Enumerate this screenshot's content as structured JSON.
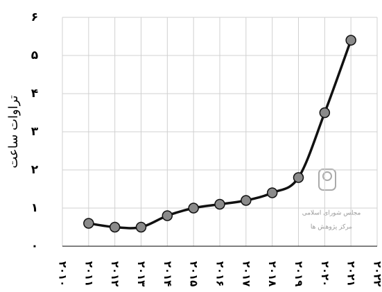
{
  "chart_data": {
    "type": "line",
    "ylabel": "تراوات ساعت",
    "watermark": [
      "مجلس شورای اسلامی",
      "مرکز پژوهش ها"
    ],
    "categories": [
      "۲۰۱۰",
      "۲۰۱۱",
      "۲۰۱۲",
      "۲۰۱۳",
      "۲۰۱۴",
      "۲۰۱۵",
      "۲۰۱۶",
      "۲۰۱۷",
      "۲۰۱۸",
      "۲۰۱۹",
      "۲۰۲۰",
      "۲۰۲۱",
      "۲۰۲۲"
    ],
    "values": [
      null,
      0.6,
      0.5,
      0.5,
      0.8,
      1.0,
      1.1,
      1.2,
      1.4,
      1.8,
      3.5,
      5.4,
      null
    ],
    "color": "#111111",
    "marker_color": "#8a8a8a",
    "ylim": [
      0,
      6
    ],
    "yticks": [
      {
        "value": 0,
        "label": "۰"
      },
      {
        "value": 1,
        "label": "۱"
      },
      {
        "value": 2,
        "label": "۲"
      },
      {
        "value": 3,
        "label": "۳"
      },
      {
        "value": 4,
        "label": "۴"
      },
      {
        "value": 5,
        "label": "۵"
      },
      {
        "value": 6,
        "label": "۶"
      }
    ],
    "grid": true
  }
}
